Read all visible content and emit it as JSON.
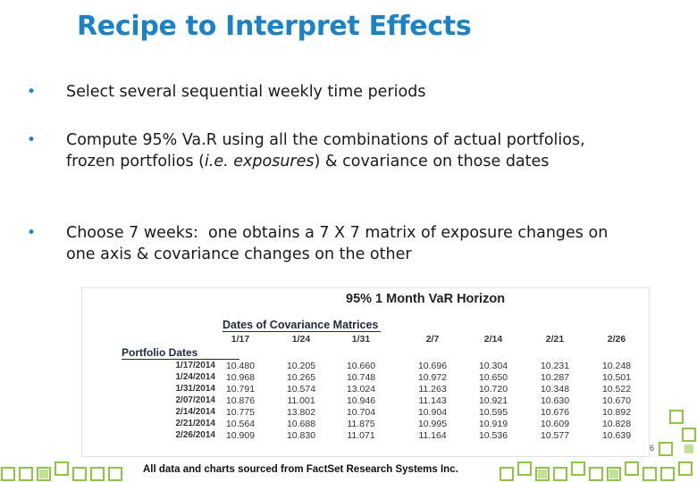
{
  "title": "Recipe to Interpret Effects",
  "bullets": [
    {
      "text_html": "Select several sequential weekly time periods"
    },
    {
      "text_html": "Compute 95% Va.R using all the combinations of actual portfolios, frozen portfolios (<em>i.e. exposures</em>) &amp; covariance on those dates"
    },
    {
      "text_html": "Choose 7 weeks:&nbsp; one obtains a 7 X 7 matrix of exposure changes on one axis &amp; covariance changes on the other"
    }
  ],
  "bullet_glyph": "•",
  "table": {
    "title": "95% 1 Month VaR Horizon",
    "covariance_label": "Dates of Covariance Matrices",
    "portfolio_label": "Portfolio Dates",
    "columns": [
      "1/17",
      "1/24",
      "1/31",
      "2/7",
      "2/14",
      "2/21",
      "2/26"
    ],
    "rows": [
      {
        "label": "1/17/2014",
        "values": [
          "10.480",
          "10.205",
          "10.660",
          "10.696",
          "10.304",
          "10.231",
          "10.248"
        ]
      },
      {
        "label": "1/24/2014",
        "values": [
          "10.968",
          "10.265",
          "10.748",
          "10.972",
          "10.650",
          "10.287",
          "10.501"
        ]
      },
      {
        "label": "1/31/2014",
        "values": [
          "10.791",
          "10.574",
          "13.024",
          "11.263",
          "10.720",
          "10.348",
          "10.522"
        ]
      },
      {
        "label": "2/07/2014",
        "values": [
          "10.876",
          "11.001",
          "10.946",
          "11.143",
          "10.921",
          "10.630",
          "10.670"
        ]
      },
      {
        "label": "2/14/2014",
        "values": [
          "10.775",
          "13.802",
          "10.704",
          "10.904",
          "10.595",
          "10.676",
          "10.892"
        ]
      },
      {
        "label": "2/21/2014",
        "values": [
          "10.564",
          "10.688",
          "11.875",
          "10.995",
          "10.919",
          "10.609",
          "10.828"
        ]
      },
      {
        "label": "2/26/2014",
        "values": [
          "10.909",
          "10.830",
          "11.071",
          "11.164",
          "10.536",
          "10.577",
          "10.639"
        ]
      }
    ]
  },
  "footer": "All data and charts sourced from FactSet Research Systems Inc.",
  "page_number": "6",
  "colors": {
    "title": "#1b82c8",
    "bullet": "#1b82c8",
    "deco": "#8dc63f"
  }
}
